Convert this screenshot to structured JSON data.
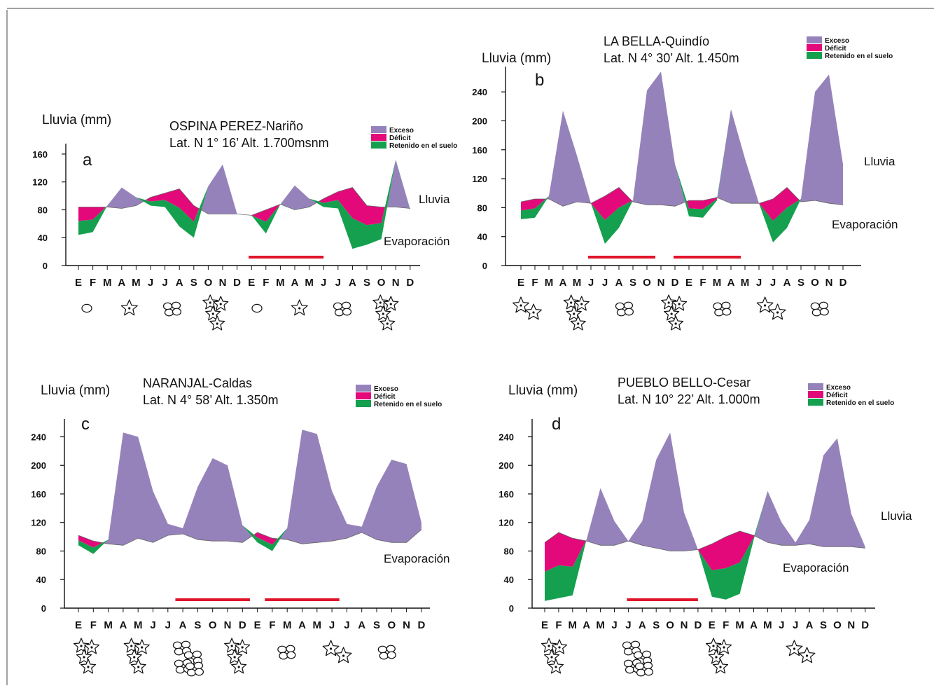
{
  "colors": {
    "excess": "#9682bb",
    "deficit": "#e4097a",
    "retained": "#14a04e",
    "bar": "#e0142a",
    "line": "#666666"
  },
  "legend_labels": [
    "Exceso",
    "Déficit",
    "Retenido en el suelo"
  ],
  "chart_data": [
    {
      "type": "area",
      "letter": "a",
      "ylabel": "Lluvia (mm)",
      "title_line1": "OSPINA PEREZ-Nariño",
      "title_line2": "Lat. N 1° 16’ Alt. 1.700msnm",
      "series_labels": [
        "Lluvia",
        "Evaporación"
      ],
      "months": [
        "E",
        "F",
        "M",
        "A",
        "M",
        "J",
        "J",
        "A",
        "S",
        "O",
        "N",
        "D",
        "E",
        "F",
        "M",
        "A",
        "M",
        "J",
        "J",
        "A",
        "S",
        "O",
        "N",
        "D"
      ],
      "yticks": [
        0,
        40,
        80,
        120,
        160
      ],
      "ylim": [
        0,
        175
      ],
      "rain": [
        44,
        48,
        86,
        112,
        98,
        86,
        84,
        56,
        40,
        114,
        145,
        74,
        72,
        46,
        88,
        115,
        96,
        84,
        82,
        24,
        30,
        38,
        152,
        80
      ],
      "evap": [
        84,
        84,
        84,
        82,
        86,
        98,
        104,
        110,
        86,
        74,
        74,
        74,
        72,
        80,
        88,
        80,
        84,
        96,
        106,
        112,
        86,
        84,
        84,
        82
      ],
      "dry_periods": [
        [
          11.8,
          17.0
        ]
      ],
      "icons": [
        "circle",
        "star",
        "flower",
        "star-cluster",
        "circle",
        "star",
        "flower",
        "star-cluster"
      ]
    },
    {
      "type": "area",
      "letter": "b",
      "ylabel": "Lluvia (mm)",
      "title_line1": "LA BELLA-Quindío",
      "title_line2": "Lat. N 4° 30’ Alt. 1.450m",
      "series_labels": [
        "Lluvia",
        "Evaporación"
      ],
      "months": [
        "E",
        "F",
        "M",
        "A",
        "M",
        "J",
        "J",
        "A",
        "S",
        "O",
        "N",
        "D",
        "E",
        "F",
        "M",
        "A",
        "M",
        "J",
        "J",
        "A",
        "S",
        "O",
        "N",
        "D"
      ],
      "yticks": [
        0,
        40,
        80,
        120,
        160,
        200,
        240
      ],
      "ylim": [
        0,
        275
      ],
      "rain": [
        64,
        66,
        96,
        214,
        152,
        86,
        30,
        52,
        90,
        242,
        268,
        140,
        68,
        66,
        90,
        216,
        148,
        86,
        32,
        52,
        92,
        240,
        264,
        140
      ],
      "evap": [
        88,
        92,
        92,
        82,
        88,
        86,
        96,
        108,
        88,
        84,
        84,
        82,
        90,
        90,
        94,
        86,
        86,
        86,
        92,
        108,
        88,
        90,
        86,
        84
      ],
      "dry_periods": [
        [
          4.8,
          9.6
        ],
        [
          10.9,
          15.7
        ]
      ],
      "icons": [
        "star-pair",
        "star-cluster",
        "flower",
        "star-cluster",
        "flower",
        "star-pair",
        "flower"
      ]
    },
    {
      "type": "area",
      "letter": "c",
      "ylabel": "Lluvia (mm)",
      "title_line1": "NARANJAL-Caldas",
      "title_line2": "Lat. N 4° 58’ Alt. 1.350m",
      "series_labels": [
        "Evaporación"
      ],
      "months": [
        "E",
        "F",
        "M",
        "A",
        "M",
        "J",
        "J",
        "A",
        "S",
        "O",
        "N",
        "D",
        "E",
        "F",
        "M",
        "A",
        "M",
        "J",
        "J",
        "A",
        "S",
        "O",
        "N",
        "D"
      ],
      "yticks": [
        0,
        40,
        80,
        120,
        160,
        200,
        240
      ],
      "ylim": [
        0,
        265
      ],
      "rain": [
        88,
        76,
        96,
        246,
        240,
        164,
        118,
        112,
        170,
        210,
        200,
        116,
        92,
        80,
        112,
        250,
        244,
        164,
        118,
        114,
        170,
        208,
        202,
        120
      ],
      "evap": [
        102,
        94,
        90,
        88,
        98,
        92,
        102,
        104,
        96,
        94,
        94,
        92,
        106,
        98,
        96,
        90,
        92,
        94,
        98,
        106,
        96,
        92,
        92,
        110
      ],
      "dry_periods": [
        [
          6.5,
          11.5
        ],
        [
          12.5,
          17.5
        ]
      ],
      "icons": [
        "star-cluster",
        "star-cluster",
        "flower-cluster",
        "star-cluster",
        "flower",
        "star-pair",
        "flower"
      ]
    },
    {
      "type": "area",
      "letter": "d",
      "ylabel": "Lluvia (mm)",
      "title_line1": "PUEBLO BELLO-Cesar",
      "title_line2": "Lat. N 10° 22’ Alt. 1.000m",
      "series_labels": [
        "Lluvia",
        "Evaporación"
      ],
      "months": [
        "E",
        "F",
        "M",
        "A",
        "M",
        "J",
        "J",
        "A",
        "S",
        "O",
        "N",
        "D",
        "E",
        "F",
        "M",
        "A",
        "M",
        "J",
        "J",
        "A",
        "S",
        "O",
        "N",
        "D"
      ],
      "yticks": [
        0,
        40,
        80,
        120,
        160,
        200,
        240
      ],
      "ylim": [
        0,
        265
      ],
      "rain": [
        10,
        14,
        18,
        96,
        168,
        122,
        94,
        122,
        208,
        246,
        134,
        82,
        16,
        12,
        20,
        96,
        164,
        120,
        92,
        124,
        214,
        238,
        132,
        86
      ],
      "evap": [
        92,
        106,
        98,
        94,
        88,
        88,
        94,
        88,
        84,
        80,
        80,
        82,
        90,
        100,
        108,
        102,
        92,
        88,
        88,
        90,
        86,
        86,
        86,
        84
      ],
      "dry_periods": [
        [
          5.9,
          11.0
        ]
      ],
      "icons": [
        "star-cluster",
        "flower-cluster",
        "star-cluster",
        "star-pair"
      ]
    }
  ]
}
